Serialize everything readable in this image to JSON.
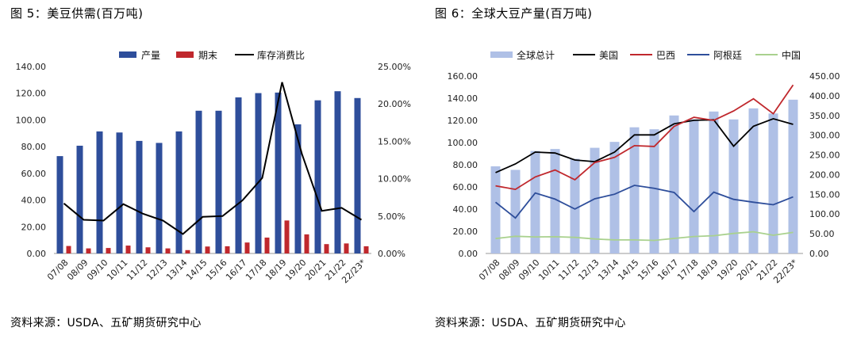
{
  "panels": {
    "left": {
      "title": "图 5：美豆供需(百万吨)",
      "source": "资料来源：USDA、五矿期货研究中心"
    },
    "right": {
      "title": "图 6：全球大豆产量(百万吨)",
      "source": "资料来源：USDA、五矿期货研究中心"
    }
  },
  "chart_data": [
    {
      "type": "bar",
      "title": "美豆供需(百万吨)",
      "categories": [
        "07/08",
        "08/09",
        "09/10",
        "10/11",
        "11/12",
        "12/13",
        "13/14",
        "14/15",
        "15/16",
        "16/17",
        "17/18",
        "18/19",
        "19/20",
        "20/21",
        "21/22",
        "22/23*"
      ],
      "y_left": {
        "min": 0,
        "max": 140,
        "step": 20,
        "ticks": [
          "0.00",
          "20.00",
          "40.00",
          "60.00",
          "80.00",
          "100.00",
          "120.00",
          "140.00"
        ]
      },
      "y_right": {
        "min": 0,
        "max": 25,
        "step": 5,
        "ticks": [
          "0.00%",
          "5.00%",
          "10.00%",
          "15.00%",
          "20.00%",
          "25.00%"
        ]
      },
      "series": [
        {
          "name": "产量",
          "type": "bar",
          "axis": "left",
          "color": "#2E4E9B",
          "values": [
            72.9,
            80.7,
            91.4,
            90.6,
            84.3,
            82.8,
            91.4,
            106.9,
            106.9,
            116.9,
            120.1,
            120.5,
            96.7,
            114.7,
            121.5,
            116.4
          ]
        },
        {
          "name": "期末",
          "type": "bar",
          "axis": "left",
          "color": "#C0282D",
          "values": [
            5.6,
            3.8,
            4.1,
            5.9,
            4.6,
            3.8,
            2.5,
            5.2,
            5.4,
            8.2,
            11.9,
            24.7,
            14.3,
            7.0,
            7.5,
            5.4
          ]
        },
        {
          "name": "库存消费比",
          "type": "line",
          "axis": "right",
          "color": "#000000",
          "values": [
            6.7,
            4.5,
            4.4,
            6.6,
            5.3,
            4.4,
            2.6,
            4.9,
            5.0,
            7.1,
            10.1,
            22.9,
            13.3,
            5.7,
            6.1,
            4.5
          ]
        }
      ]
    },
    {
      "type": "bar",
      "title": "全球大豆产量(百万吨)",
      "categories": [
        "07/08",
        "08/09",
        "09/10",
        "10/11",
        "11/12",
        "12/13",
        "13/14",
        "14/15",
        "15/16",
        "16/17",
        "17/18",
        "18/19",
        "19/20",
        "20/21",
        "21/22",
        "22/23*"
      ],
      "y_left": {
        "min": 0,
        "max": 160,
        "step": 20,
        "ticks": [
          "0.00",
          "20.00",
          "40.00",
          "60.00",
          "80.00",
          "100.00",
          "120.00",
          "140.00",
          "160.00"
        ]
      },
      "y_right": {
        "min": 0,
        "max": 450,
        "step": 50,
        "ticks": [
          "0.00",
          "50.00",
          "100.00",
          "150.00",
          "200.00",
          "250.00",
          "300.00",
          "350.00",
          "400.00",
          "450.00"
        ]
      },
      "series": [
        {
          "name": "全球总计",
          "type": "bar",
          "axis": "right",
          "color": "#AFC0E6",
          "values": [
            221,
            212,
            260,
            265,
            240,
            268,
            283,
            320,
            315,
            350,
            340,
            360,
            340,
            368,
            355,
            390
          ]
        },
        {
          "name": "美国",
          "type": "line",
          "axis": "left",
          "color": "#000000",
          "values": [
            72.9,
            80.7,
            91.4,
            90.6,
            84.3,
            82.8,
            91.4,
            106.9,
            106.9,
            116.9,
            120.1,
            120.5,
            96.7,
            114.7,
            121.5,
            116.4
          ]
        },
        {
          "name": "巴西",
          "type": "line",
          "axis": "left",
          "color": "#C0282D",
          "values": [
            61,
            57.8,
            69,
            75.3,
            66.5,
            82,
            86.7,
            97.2,
            96.5,
            114.6,
            122.8,
            120,
            128.5,
            139.5,
            126,
            152
          ]
        },
        {
          "name": "阿根廷",
          "type": "line",
          "axis": "left",
          "color": "#2E4E9B",
          "values": [
            46.2,
            32,
            54.5,
            49,
            40.1,
            49.3,
            53.4,
            61.4,
            58.8,
            55,
            37.8,
            55.3,
            48.8,
            46.2,
            43.9,
            51
          ]
        },
        {
          "name": "中国",
          "type": "line",
          "axis": "left",
          "color": "#A9D18E",
          "values": [
            13.4,
            15.5,
            14.9,
            15.1,
            14.5,
            13.1,
            12.2,
            12.2,
            11.8,
            13.6,
            15.3,
            16,
            18.1,
            19.6,
            16.4,
            19
          ]
        }
      ]
    }
  ]
}
